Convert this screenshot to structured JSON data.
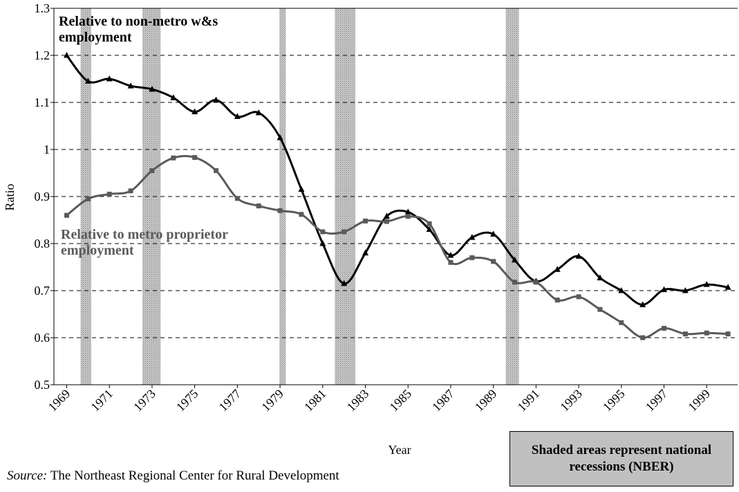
{
  "chart_data": {
    "type": "line",
    "y_label": "Ratio",
    "x_label": "Year",
    "x": [
      1969,
      1970,
      1971,
      1972,
      1973,
      1974,
      1975,
      1976,
      1977,
      1978,
      1979,
      1980,
      1981,
      1982,
      1983,
      1984,
      1985,
      1986,
      1987,
      1988,
      1989,
      1990,
      1991,
      1992,
      1993,
      1994,
      1995,
      1996,
      1997,
      1998,
      1999,
      2000
    ],
    "series": [
      {
        "name": "Relative to non-metro w&s employment",
        "color": "#000000",
        "marker": "triangle",
        "values": [
          1.2,
          1.145,
          1.15,
          1.135,
          1.128,
          1.11,
          1.08,
          1.105,
          1.07,
          1.078,
          1.025,
          0.915,
          0.8,
          0.715,
          0.78,
          0.858,
          0.867,
          0.83,
          0.775,
          0.813,
          0.82,
          0.765,
          0.72,
          0.745,
          0.773,
          0.727,
          0.7,
          0.67,
          0.702,
          0.7,
          0.713,
          0.707
        ]
      },
      {
        "name": "Relative to metro proprietor employment",
        "color": "#5a5a5a",
        "marker": "square",
        "values": [
          0.86,
          0.895,
          0.905,
          0.912,
          0.955,
          0.982,
          0.983,
          0.955,
          0.896,
          0.88,
          0.87,
          0.862,
          0.825,
          0.825,
          0.848,
          0.847,
          0.858,
          0.842,
          0.76,
          0.77,
          0.762,
          0.718,
          0.718,
          0.68,
          0.687,
          0.66,
          0.632,
          0.6,
          0.62,
          0.608,
          0.61,
          0.608
        ]
      }
    ],
    "recessions": [
      [
        1969.65,
        1970.15
      ],
      [
        1972.55,
        1973.4
      ],
      [
        1978.97,
        1979.27
      ],
      [
        1981.57,
        1982.53
      ],
      [
        1989.58,
        1990.2
      ]
    ],
    "recession_note": "Shaded areas represent national recessions (NBER)",
    "xlim": [
      1968.4,
      2000.45
    ],
    "xticks": [
      1969,
      1971,
      1973,
      1975,
      1977,
      1979,
      1981,
      1983,
      1985,
      1987,
      1989,
      1991,
      1993,
      1995,
      1997,
      1999
    ],
    "ylim": [
      0.5,
      1.3
    ],
    "yticks": [
      0.5,
      0.6,
      0.7,
      0.8,
      0.9,
      1,
      1.1,
      1.2,
      1.3
    ],
    "grid": true,
    "source_label": "Source:",
    "source": "The Northeast Regional Center for Rural Development"
  }
}
